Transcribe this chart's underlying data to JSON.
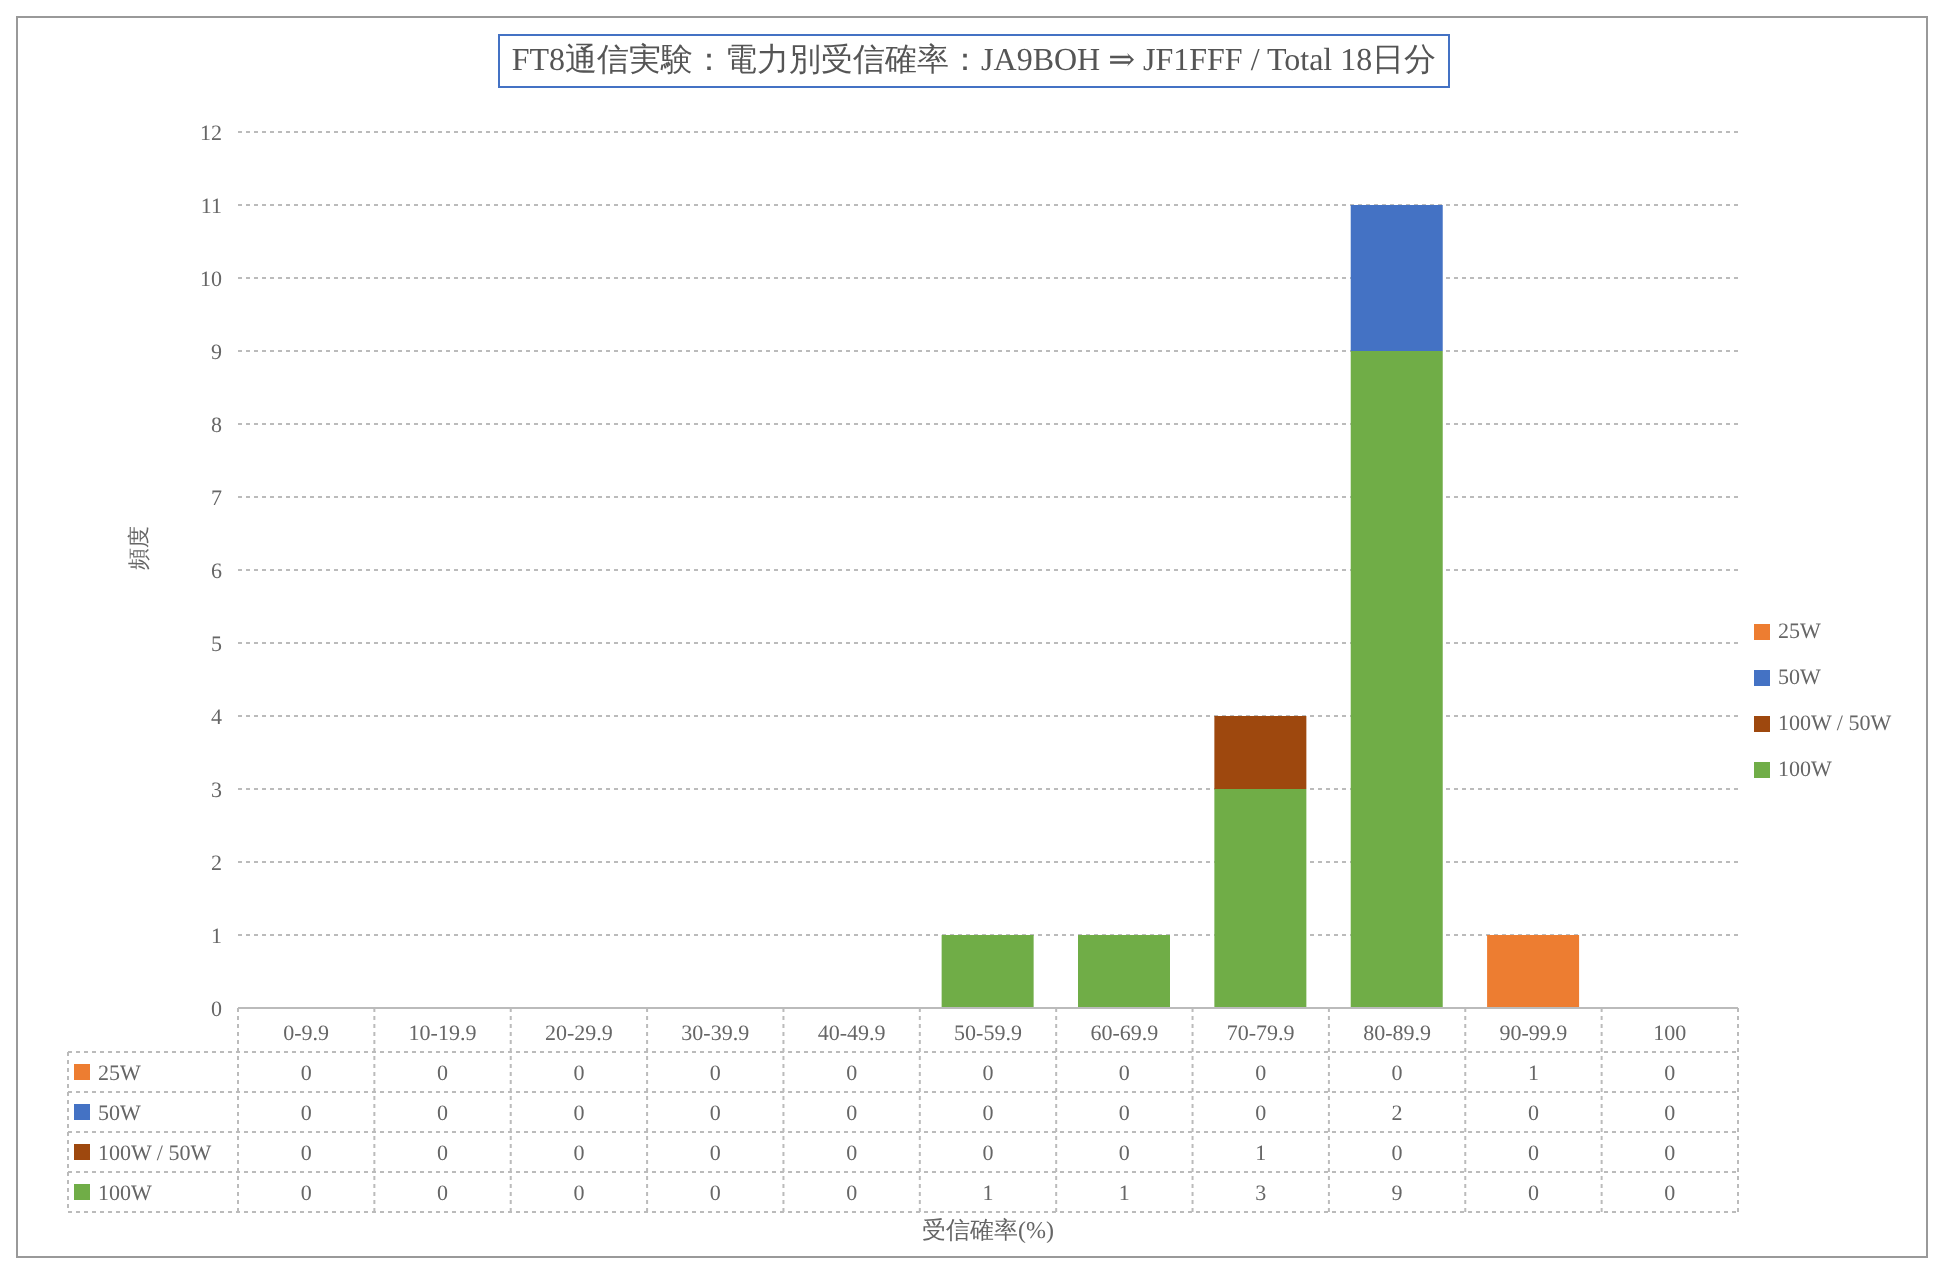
{
  "chart_data": {
    "type": "bar",
    "title": "FT8通信実験：電力別受信確率：JA9BOH ⇒ JF1FFF / Total 18日分",
    "annotations": [
      "受信確率(%)"
    ],
    "ylabel": "頻度",
    "categories": [
      "0-9.9",
      "10-19.9",
      "20-29.9",
      "30-39.9",
      "40-49.9",
      "50-59.9",
      "60-69.9",
      "70-79.9",
      "80-89.9",
      "90-99.9",
      "100"
    ],
    "series": [
      {
        "name": "100W",
        "color": "#70ad47",
        "values": [
          0,
          0,
          0,
          0,
          0,
          1,
          1,
          3,
          9,
          0,
          0
        ]
      },
      {
        "name": "100W / 50W",
        "color": "#9e480e",
        "values": [
          0,
          0,
          0,
          0,
          0,
          0,
          0,
          1,
          0,
          0,
          0
        ]
      },
      {
        "name": "50W",
        "color": "#4472c4",
        "values": [
          0,
          0,
          0,
          0,
          0,
          0,
          0,
          0,
          2,
          0,
          0
        ]
      },
      {
        "name": "25W",
        "color": "#ed7d31",
        "values": [
          0,
          0,
          0,
          0,
          0,
          0,
          0,
          0,
          0,
          1,
          0
        ]
      }
    ],
    "stacked": true,
    "ylim": [
      0,
      12
    ],
    "yticks": [
      0,
      1,
      2,
      3,
      4,
      5,
      6,
      7,
      8,
      9,
      10,
      11,
      12
    ],
    "grid": "y",
    "legend": "right",
    "data_labels": true
  }
}
